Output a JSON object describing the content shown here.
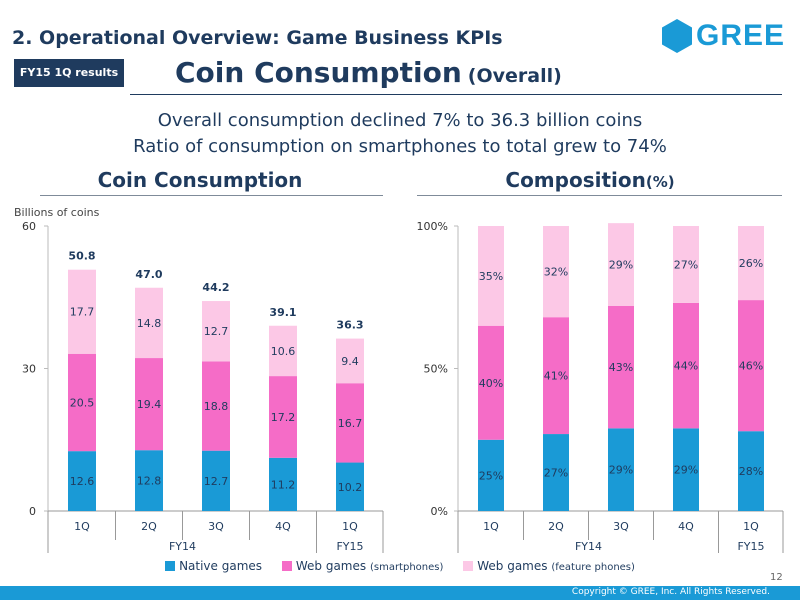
{
  "header": {
    "section_title": "2. Operational Overview: Game Business KPIs",
    "badge": "FY15 1Q results",
    "title_main": "Coin Consumption",
    "title_sub": "(Overall)",
    "logo_text": "GREE"
  },
  "summary": {
    "line1": "Overall consumption declined 7% to 36.3 billion coins",
    "line2": "Ratio of consumption on smartphones to total grew to 74%"
  },
  "colors": {
    "native": "#1a9ad6",
    "smartphone": "#f56cc7",
    "feature": "#fcc8e6",
    "text": "#1f3b5e",
    "footer": "#1a9ad6"
  },
  "legend": {
    "native": "Native games",
    "smartphone_main": "Web games",
    "smartphone_note": "(smartphones)",
    "feature_main": "Web games",
    "feature_note": "(feature phones)"
  },
  "chart_data": [
    {
      "type": "bar",
      "stacked": true,
      "title": "Coin Consumption",
      "ylabel": "Billions of coins",
      "ylim": [
        0,
        60
      ],
      "yticks": [
        "0",
        "30",
        "60"
      ],
      "categories": [
        "1Q",
        "2Q",
        "3Q",
        "4Q",
        "1Q"
      ],
      "groups": [
        {
          "label": "FY14",
          "count": 4
        },
        {
          "label": "FY15",
          "count": 1
        }
      ],
      "totals": [
        "50.8",
        "47.0",
        "44.2",
        "39.1",
        "36.3"
      ],
      "series": [
        {
          "name": "Native games",
          "values": [
            12.6,
            12.8,
            12.7,
            11.2,
            10.2
          ],
          "labels": [
            "12.6",
            "12.8",
            "12.7",
            "11.2",
            "10.2"
          ]
        },
        {
          "name": "Web games (smartphones)",
          "values": [
            20.5,
            19.4,
            18.8,
            17.2,
            16.7
          ],
          "labels": [
            "20.5",
            "19.4",
            "18.8",
            "17.2",
            "16.7"
          ]
        },
        {
          "name": "Web games (feature phones)",
          "values": [
            17.7,
            14.8,
            12.7,
            10.6,
            9.4
          ],
          "labels": [
            "17.7",
            "14.8",
            "12.7",
            "10.6",
            "9.4"
          ]
        }
      ]
    },
    {
      "type": "bar",
      "stacked": true,
      "title": "Composition",
      "title_unit": "(%)",
      "ylim": [
        0,
        100
      ],
      "yticks": [
        "0%",
        "50%",
        "100%"
      ],
      "categories": [
        "1Q",
        "2Q",
        "3Q",
        "4Q",
        "1Q"
      ],
      "groups": [
        {
          "label": "FY14",
          "count": 4
        },
        {
          "label": "FY15",
          "count": 1
        }
      ],
      "series": [
        {
          "name": "Native games",
          "values": [
            25,
            27,
            29,
            29,
            28
          ],
          "labels": [
            "25%",
            "27%",
            "29%",
            "29%",
            "28%"
          ]
        },
        {
          "name": "Web games (smartphones)",
          "values": [
            40,
            41,
            43,
            44,
            46
          ],
          "labels": [
            "40%",
            "41%",
            "43%",
            "44%",
            "46%"
          ]
        },
        {
          "name": "Web games (feature phones)",
          "values": [
            35,
            32,
            29,
            27,
            26
          ],
          "labels": [
            "35%",
            "32%",
            "29%",
            "27%",
            "26%"
          ]
        }
      ]
    }
  ],
  "footer": {
    "page_number": "12",
    "copyright": "Copyright © GREE, Inc. All Rights Reserved."
  }
}
